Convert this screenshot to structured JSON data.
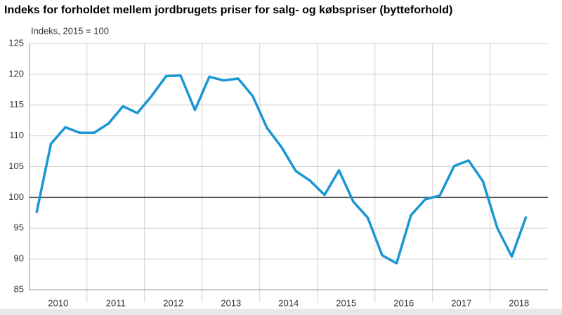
{
  "chart_data": {
    "type": "line",
    "title": "Indeks for forholdet mellem jordbrugets priser for salg- og købspriser (bytteforhold)",
    "y_label": "Indeks, 2015 = 100",
    "categories": [
      "2010",
      null,
      null,
      null,
      "2011",
      null,
      null,
      null,
      "2012",
      null,
      null,
      null,
      "2013",
      null,
      null,
      null,
      "2014",
      null,
      null,
      null,
      "2015",
      null,
      null,
      null,
      "2016",
      null,
      null,
      null,
      "2017",
      null,
      null,
      null,
      "2018",
      null,
      null
    ],
    "series": [
      {
        "name": "Bytteforhold",
        "color": "#1a96d4",
        "values": [
          97.5,
          108.7,
          111.4,
          110.5,
          110.5,
          112,
          114.8,
          113.7,
          116.5,
          119.7,
          119.8,
          114.2,
          119.6,
          119,
          119.3,
          116.5,
          111.3,
          108.2,
          104.3,
          102.7,
          100.4,
          104.4,
          99.3,
          96.7,
          90.6,
          89.3,
          97.1,
          99.7,
          100.3,
          105.1,
          106,
          102.6,
          95,
          90.4,
          96.9
        ]
      }
    ],
    "reference_line": 100,
    "ylim": [
      85,
      125
    ],
    "yticks": [
      85,
      90,
      95,
      100,
      105,
      110,
      115,
      120,
      125
    ],
    "grid": true
  }
}
